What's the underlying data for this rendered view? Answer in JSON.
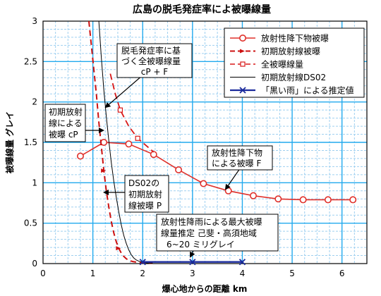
{
  "chart_data": {
    "type": "line",
    "title": "広島の脱毛発症率によ被曝線量",
    "xlabel": "爆心地からの距離 km",
    "ylabel": "被曝線量 グレイ",
    "xlim": [
      0,
      6.5
    ],
    "ylim": [
      0,
      3
    ],
    "x_ticks": [
      "0",
      "1",
      "2",
      "3",
      "4",
      "5",
      "6"
    ],
    "y_ticks": [
      "0",
      "0.5",
      "1",
      "1.5",
      "2",
      "2.5",
      "3"
    ],
    "grid": true,
    "legend_position": "top-right",
    "colors": {
      "fallout": "#e0302a",
      "initial": "#cc1010",
      "total": "#d81818",
      "ds02": "#000000",
      "black_rain": "#1a2a9c",
      "grid_blue": "#22aaee",
      "grid_dash": "#9fd0f0"
    },
    "series": [
      {
        "name": "放射性降下物被曝",
        "style": "solid-red-circles",
        "x": [
          0.75,
          1.22,
          1.72,
          2.22,
          2.72,
          3.22,
          3.72,
          4.22,
          4.72,
          5.22,
          5.72,
          6.22
        ],
        "y": [
          1.33,
          1.5,
          1.48,
          1.35,
          1.16,
          0.99,
          0.9,
          0.84,
          0.8,
          0.79,
          0.79,
          0.79
        ]
      },
      {
        "name": "初期放射線被曝",
        "style": "dashed-red-arrows",
        "x": [
          0.92,
          0.97,
          1.02,
          1.07,
          1.12,
          1.17,
          1.22,
          1.27,
          1.32,
          1.37,
          1.42,
          1.47,
          1.52,
          1.57,
          1.62,
          1.67,
          1.72,
          1.8,
          1.9,
          2.0,
          2.2
        ],
        "y": [
          3.0,
          2.7,
          2.4,
          2.1,
          1.75,
          1.45,
          1.15,
          0.9,
          0.7,
          0.52,
          0.38,
          0.27,
          0.19,
          0.13,
          0.09,
          0.06,
          0.04,
          0.025,
          0.015,
          0.01,
          0.005
        ]
      },
      {
        "name": "全被曝線量",
        "style": "dashed-red-squares",
        "x": [
          1.35,
          1.45,
          1.55,
          1.72,
          1.9,
          2.22
        ],
        "y": [
          2.35,
          2.1,
          1.9,
          1.7,
          1.55,
          1.38
        ]
      },
      {
        "name": "初期放射線DS02",
        "style": "thin-black",
        "x": [
          1.12,
          1.17,
          1.22,
          1.27,
          1.32,
          1.37,
          1.42,
          1.47,
          1.52,
          1.57,
          1.62,
          1.67,
          1.72,
          1.77,
          1.82,
          1.87,
          1.92,
          2.0,
          2.1,
          2.2
        ],
        "y": [
          3.0,
          2.55,
          2.15,
          1.82,
          1.52,
          1.25,
          1.02,
          0.82,
          0.64,
          0.48,
          0.35,
          0.25,
          0.17,
          0.11,
          0.07,
          0.045,
          0.03,
          0.015,
          0.008,
          0.004
        ]
      },
      {
        "name": "「黒い雨」による推定値",
        "style": "blue-x",
        "x": [
          2.0,
          3.0,
          4.0
        ],
        "y": [
          0.02,
          0.02,
          0.02
        ]
      }
    ],
    "annotations": [
      {
        "id": "total",
        "lines": [
          "脱毛発症率に基",
          "づく全被曝線量",
          "cP + F"
        ]
      },
      {
        "id": "initial",
        "lines": [
          "初期放射",
          "線による",
          "被曝 cP"
        ]
      },
      {
        "id": "fallout",
        "lines": [
          "放射性降下物",
          "による被曝 F"
        ]
      },
      {
        "id": "ds02",
        "lines": [
          "DS02の",
          "初期放射",
          "線被曝 P"
        ]
      },
      {
        "id": "rain",
        "lines": [
          "放射性降雨による最大被曝",
          "線量推定 己斐・高須地域",
          "6~20 ミリグレイ"
        ]
      }
    ]
  }
}
